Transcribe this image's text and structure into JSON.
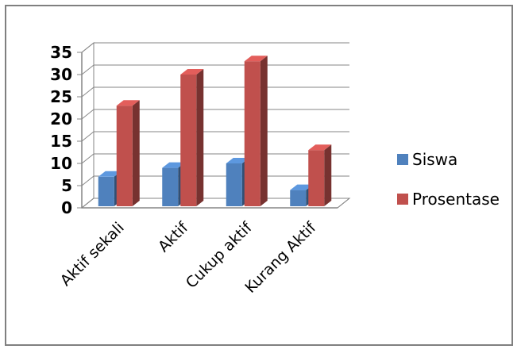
{
  "chart_data": {
    "type": "bar",
    "title": "",
    "xlabel": "",
    "ylabel": "",
    "categories": [
      "Aktif sekali",
      "Aktif",
      "Cukup aktif",
      "Kurang Aktif"
    ],
    "series": [
      {
        "name": "Siswa",
        "values": [
          7,
          9,
          10,
          4
        ],
        "color": "#4F81BD"
      },
      {
        "name": "Prosentase",
        "values": [
          23,
          30,
          33,
          13
        ],
        "color": "#C0504D"
      }
    ],
    "ylim": [
      0,
      35
    ],
    "yticks": [
      "0",
      "5",
      "10",
      "15",
      "20",
      "25",
      "30",
      "35"
    ],
    "grid": true,
    "legend": "right",
    "three_d": true
  }
}
